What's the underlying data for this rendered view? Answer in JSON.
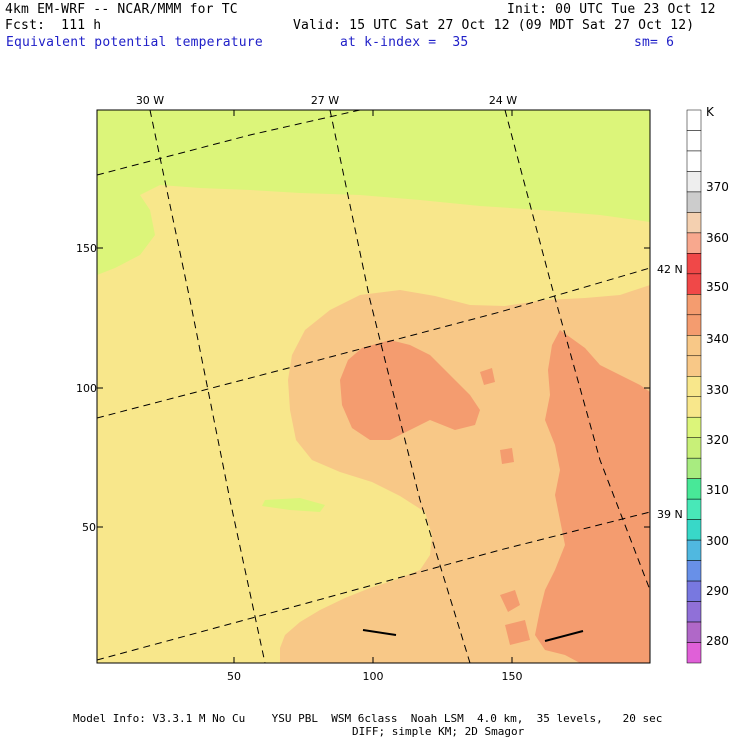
{
  "header": {
    "model_line": "4km EM-WRF -- NCAR/MMM for TC",
    "forecast_line": "Fcst:  111 h",
    "init_line": "Init: 00 UTC Tue 23 Oct 12",
    "valid_line": "Valid: 15 UTC Sat 27 Oct 12 (09 MDT Sat 27 Oct 12)",
    "field_name": "Equivalent potential temperature",
    "level_info": "at k-index =  35",
    "smoothing": "sm= 6"
  },
  "map": {
    "x_ticks": [
      50,
      100,
      150
    ],
    "y_ticks": [
      50,
      100,
      150
    ],
    "x_range": [
      1,
      200
    ],
    "y_range": [
      1,
      200
    ],
    "longitude_labels": [
      "30 W",
      "27 W",
      "24 W"
    ],
    "latitude_labels": [
      "42 N",
      "39 N"
    ],
    "field_colors": {
      "band_310_320": "#dcf57a",
      "band_320_330": "#f8e78b",
      "band_330_340a": "#f8c887",
      "band_330_340b": "#f49c6f"
    }
  },
  "colorbar": {
    "unit": "K",
    "labels": [
      "370",
      "360",
      "350",
      "340",
      "330",
      "320",
      "310",
      "300",
      "290",
      "280"
    ],
    "colors": [
      "#ffffff",
      "#ffffff",
      "#ffffff",
      "#eeeeee",
      "#cccccc",
      "#f4d0b0",
      "#f8a88e",
      "#f04848",
      "#f04848",
      "#f49c6f",
      "#f49c6f",
      "#f8c887",
      "#f8c887",
      "#f8e78b",
      "#f8e78b",
      "#dcf57a",
      "#c8f078",
      "#a8ec80",
      "#48e898",
      "#48e8b8",
      "#38d8c8",
      "#50b8e0",
      "#6890e8",
      "#7878e0",
      "#9070d8",
      "#b068c8",
      "#e060d8"
    ]
  },
  "footer": {
    "line1": "Model Info: V3.3.1 M No Cu    YSU PBL  WSM 6class  Noah LSM  4.0 km,  35 levels,   20 sec",
    "line2": "DIFF; simple KM; 2D Smagor"
  }
}
